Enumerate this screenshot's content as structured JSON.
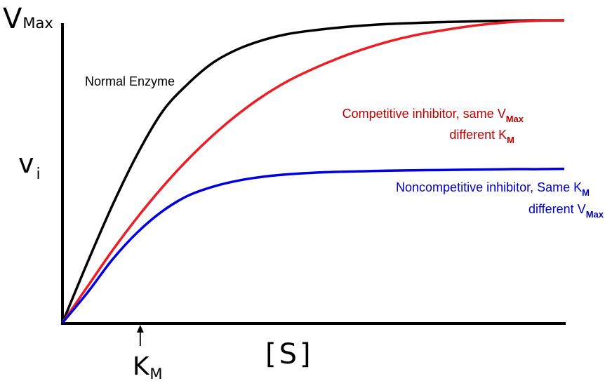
{
  "chart_data": {
    "type": "line",
    "xlabel": "[S]",
    "ylabel_main": "v",
    "ylabel_sub": "i",
    "ymax_label_main": "V",
    "ymax_label_sub": "Max",
    "km_label_main": "K",
    "km_label_sub": "M",
    "x_range": [
      0,
      100
    ],
    "y_range": [
      0,
      1
    ],
    "grid": false,
    "legend": "none",
    "series": [
      {
        "name": "Normal Enzyme",
        "color": "#000000",
        "x": [
          0,
          5,
          10,
          15,
          20,
          25,
          30,
          35,
          40,
          45,
          50,
          55,
          60,
          65,
          70,
          75,
          80,
          85,
          90,
          95,
          100
        ],
        "y": [
          0,
          0.2,
          0.39,
          0.56,
          0.7,
          0.79,
          0.86,
          0.905,
          0.935,
          0.955,
          0.967,
          0.976,
          0.983,
          0.988,
          0.991,
          0.994,
          0.996,
          0.998,
          0.999,
          1.0,
          1.0
        ]
      },
      {
        "name": "Competitive inhibitor,  same V",
        "name_sub": "Max",
        "name_line2": "different K",
        "name_line2_sub": "M",
        "color": "#ee1c24",
        "x": [
          0,
          5,
          10,
          15,
          20,
          25,
          30,
          35,
          40,
          45,
          50,
          55,
          60,
          65,
          70,
          75,
          80,
          85,
          90,
          95,
          100
        ],
        "y": [
          0,
          0.12,
          0.24,
          0.35,
          0.45,
          0.54,
          0.62,
          0.69,
          0.75,
          0.8,
          0.84,
          0.875,
          0.905,
          0.93,
          0.95,
          0.965,
          0.978,
          0.988,
          0.995,
          0.999,
          1.0
        ]
      },
      {
        "name": "Noncompetitive inhibitor,  Same K",
        "name_sub": "M",
        "name_line2": "different V",
        "name_line2_sub": "Max",
        "color": "#0000e0",
        "x": [
          0,
          5,
          10,
          15,
          20,
          25,
          30,
          35,
          40,
          45,
          50,
          55,
          60,
          65,
          70,
          75,
          80,
          85,
          90,
          95,
          100
        ],
        "y": [
          0,
          0.1,
          0.21,
          0.3,
          0.37,
          0.42,
          0.45,
          0.47,
          0.483,
          0.491,
          0.496,
          0.499,
          0.501,
          0.503,
          0.504,
          0.505,
          0.506,
          0.507,
          0.508,
          0.508,
          0.509
        ]
      }
    ],
    "km_x": 15.5
  }
}
